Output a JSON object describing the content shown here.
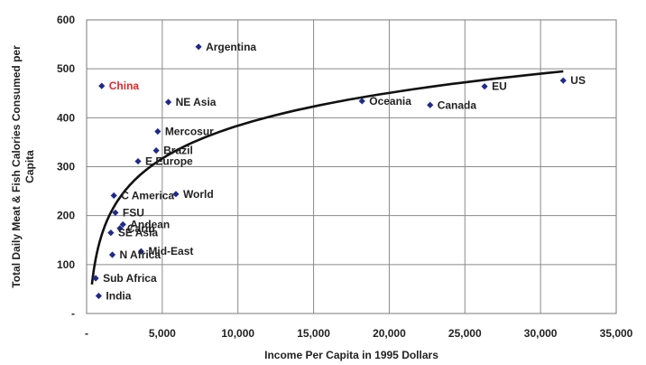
{
  "chart_data": {
    "type": "scatter",
    "xlabel": "Income Per Capita in 1995 Dollars",
    "ylabel": "Total Daily Meat & Fish Calories Consumed per Capita",
    "xlim": [
      0,
      35000
    ],
    "ylim": [
      0,
      600
    ],
    "x_ticks": [
      0,
      5000,
      10000,
      15000,
      20000,
      25000,
      30000,
      35000
    ],
    "x_tick_labels": [
      "-",
      "5,000",
      "10,000",
      "15,000",
      "20,000",
      "25,000",
      "30,000",
      "35,000"
    ],
    "y_ticks": [
      0,
      100,
      200,
      300,
      400,
      500,
      600
    ],
    "y_tick_labels": [
      "-",
      "100",
      "200",
      "300",
      "400",
      "500",
      "600"
    ],
    "grid": true,
    "marker_color": "#1f2a8c",
    "highlight_color": "#e8262b",
    "trend_color": "#111111",
    "points": [
      {
        "label": "Argentina",
        "x": 7400,
        "y": 545
      },
      {
        "label": "China",
        "x": 1000,
        "y": 465,
        "highlight": true
      },
      {
        "label": "NE Asia",
        "x": 5400,
        "y": 432
      },
      {
        "label": "Oceania",
        "x": 18200,
        "y": 434
      },
      {
        "label": "Canada",
        "x": 22700,
        "y": 426
      },
      {
        "label": "EU",
        "x": 26300,
        "y": 464
      },
      {
        "label": "US",
        "x": 31500,
        "y": 476
      },
      {
        "label": "Mercosur",
        "x": 4700,
        "y": 372
      },
      {
        "label": "Brazil",
        "x": 4600,
        "y": 333
      },
      {
        "label": "E Europe",
        "x": 3400,
        "y": 311
      },
      {
        "label": "C America",
        "x": 1800,
        "y": 241
      },
      {
        "label": "World",
        "x": 5900,
        "y": 244
      },
      {
        "label": "FSU",
        "x": 1900,
        "y": 206
      },
      {
        "label": "Andean",
        "x": 2400,
        "y": 182
      },
      {
        "label": "Carib",
        "x": 2200,
        "y": 174
      },
      {
        "label": "SE Asia",
        "x": 1600,
        "y": 165
      },
      {
        "label": "Mid-East",
        "x": 3600,
        "y": 127
      },
      {
        "label": "N Africa",
        "x": 1700,
        "y": 120
      },
      {
        "label": "Sub Africa",
        "x": 600,
        "y": 72
      },
      {
        "label": "India",
        "x": 800,
        "y": 36
      }
    ],
    "trendline": {
      "type": "logarithmic",
      "x_range": [
        350,
        31500
      ]
    }
  }
}
